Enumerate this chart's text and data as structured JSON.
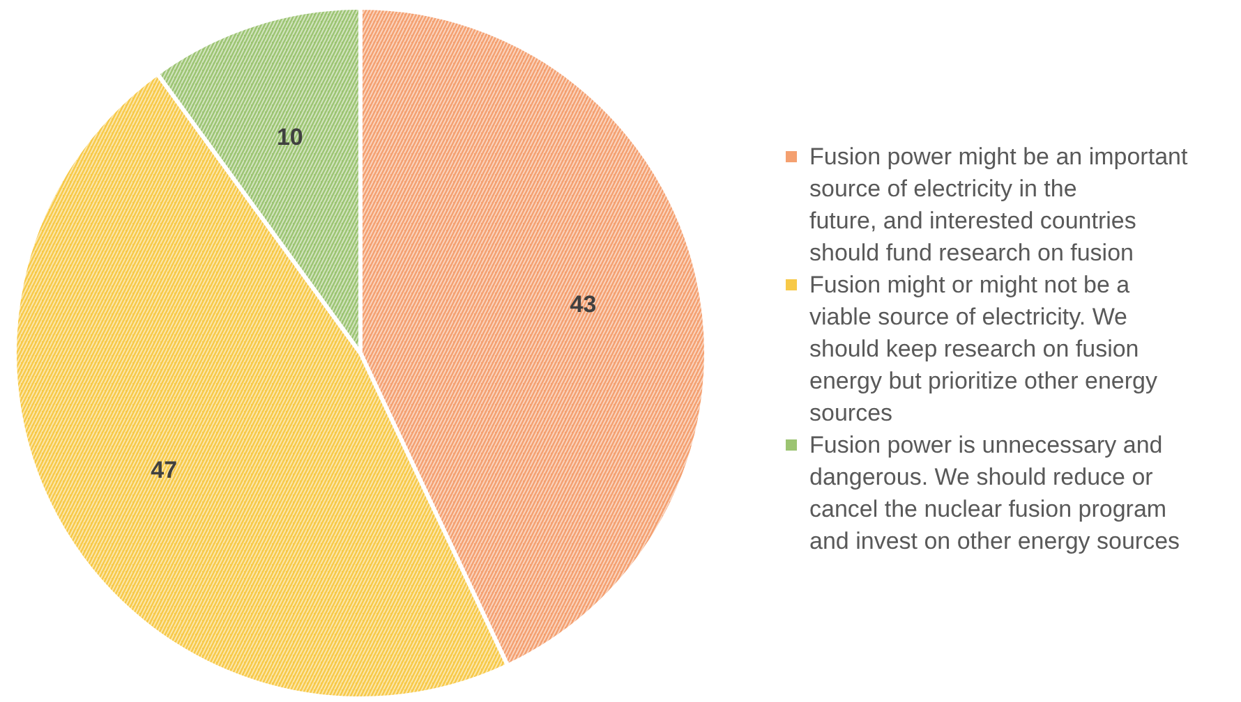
{
  "chart_data": {
    "type": "pie",
    "categories": [
      "Fusion power might be an important source of electricity in the future, and interested countries should fund research on fusion",
      "Fusion might or might not be a viable source of electricity. We should keep research on fusion energy but prioritize other energy sources",
      "Fusion power is unnecessary and dangerous. We should reduce or cancel the nuclear fusion program and invest on other energy sources"
    ],
    "values": [
      43,
      47,
      10
    ],
    "colors": [
      "#f4a070",
      "#f7c948",
      "#9cc472"
    ],
    "data_labels": true,
    "legend": "right"
  }
}
